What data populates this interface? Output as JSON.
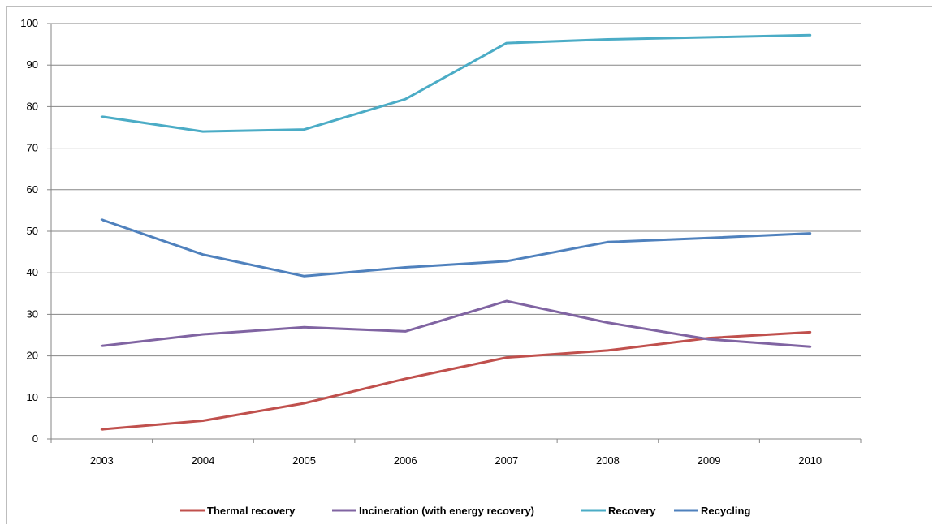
{
  "chart_data": {
    "type": "line",
    "title": "",
    "xlabel": "",
    "ylabel": "",
    "categories": [
      "2003",
      "2004",
      "2005",
      "2006",
      "2007",
      "2008",
      "2009",
      "2010"
    ],
    "ylim": [
      0,
      100
    ],
    "yticks": [
      0,
      10,
      20,
      30,
      40,
      50,
      60,
      70,
      80,
      90,
      100
    ],
    "grid": "horizontal",
    "legend_position": "bottom",
    "series": [
      {
        "name": "Thermal recovery",
        "color": "#c0504d",
        "values": [
          2.3,
          4.4,
          8.6,
          14.5,
          19.6,
          21.3,
          24.3,
          25.7
        ]
      },
      {
        "name": "Incineration (with energy recovery)",
        "color": "#8064a2",
        "values": [
          22.4,
          25.2,
          26.9,
          25.9,
          33.2,
          28.0,
          24.0,
          22.2
        ]
      },
      {
        "name": "Recovery",
        "color": "#4bacc6",
        "values": [
          77.6,
          74.0,
          74.5,
          81.8,
          95.3,
          96.2,
          96.7,
          97.2
        ]
      },
      {
        "name": "Recycling",
        "color": "#4f81bd",
        "values": [
          52.8,
          44.4,
          39.2,
          41.3,
          42.8,
          47.4,
          48.4,
          49.5
        ]
      }
    ]
  }
}
